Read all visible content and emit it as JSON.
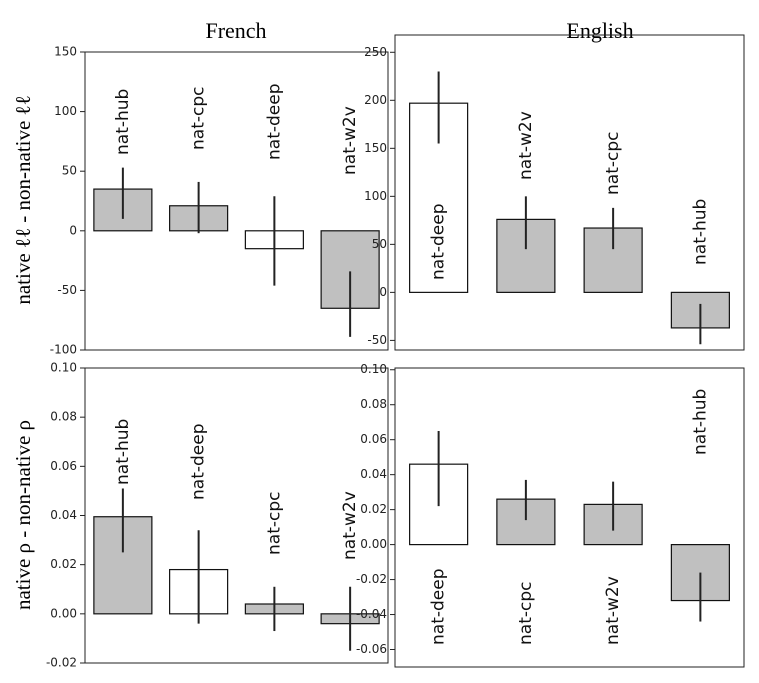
{
  "chart_data": [
    {
      "type": "bar",
      "title": "French",
      "ylabel": "native ℓℓ - non-native ℓℓ",
      "categories": [
        "nat-hub",
        "nat-cpc",
        "nat-deep",
        "nat-w2v"
      ],
      "values": [
        35,
        21,
        -15,
        -65
      ],
      "error_low": [
        10,
        -2,
        -46,
        -89
      ],
      "error_high": [
        53,
        41,
        29,
        -34
      ],
      "colors": [
        "#c0c0c0",
        "#c0c0c0",
        "#ffffff",
        "#c0c0c0"
      ],
      "ylim": [
        -100,
        150
      ],
      "yticks": [
        -100,
        -50,
        0,
        50,
        100,
        150
      ]
    },
    {
      "type": "bar",
      "title": "English",
      "categories": [
        "nat-deep",
        "nat-w2v",
        "nat-cpc",
        "nat-hub"
      ],
      "values": [
        197,
        76,
        67,
        -37
      ],
      "error_low": [
        155,
        45,
        45,
        -54
      ],
      "error_high": [
        230,
        100,
        88,
        -12
      ],
      "colors": [
        "#ffffff",
        "#c0c0c0",
        "#c0c0c0",
        "#c0c0c0"
      ],
      "ylim": [
        -60,
        268
      ],
      "yticks": [
        -50,
        0,
        50,
        100,
        150,
        200,
        250
      ]
    },
    {
      "type": "bar",
      "ylabel": "native ρ - non-native ρ",
      "categories": [
        "nat-hub",
        "nat-deep",
        "nat-cpc",
        "nat-w2v"
      ],
      "values": [
        0.0395,
        0.018,
        0.004,
        -0.004
      ],
      "error_low": [
        0.025,
        -0.004,
        -0.007,
        -0.015
      ],
      "error_high": [
        0.051,
        0.034,
        0.011,
        0.011
      ],
      "colors": [
        "#c0c0c0",
        "#ffffff",
        "#c0c0c0",
        "#c0c0c0"
      ],
      "ylim": [
        -0.02,
        0.1
      ],
      "yticks": [
        {
          "value": -0.02,
          "label": "-0.02"
        },
        {
          "value": 0,
          "label": "0.00"
        },
        {
          "value": 0.02,
          "label": "0.02"
        },
        {
          "value": 0.04,
          "label": "0.04"
        },
        {
          "value": 0.06,
          "label": "0.06"
        },
        {
          "value": 0.08,
          "label": "0.08"
        },
        {
          "value": 0.1,
          "label": "0.10"
        }
      ]
    },
    {
      "type": "bar",
      "categories": [
        "nat-deep",
        "nat-cpc",
        "nat-w2v",
        "nat-hub"
      ],
      "values": [
        0.046,
        0.026,
        0.023,
        -0.032
      ],
      "error_low": [
        0.022,
        0.014,
        0.008,
        -0.044
      ],
      "error_high": [
        0.065,
        0.037,
        0.036,
        -0.016
      ],
      "colors": [
        "#ffffff",
        "#c0c0c0",
        "#c0c0c0",
        "#c0c0c0"
      ],
      "ylim": [
        -0.07,
        0.101
      ],
      "yticks": [
        {
          "value": -0.06,
          "label": "-0.06"
        },
        {
          "value": -0.04,
          "label": "-0.04"
        },
        {
          "value": -0.02,
          "label": "-0.02"
        },
        {
          "value": 0,
          "label": "0.00"
        },
        {
          "value": 0.02,
          "label": "0.02"
        },
        {
          "value": 0.04,
          "label": "0.04"
        },
        {
          "value": 0.06,
          "label": "0.06"
        },
        {
          "value": 0.08,
          "label": "0.08"
        },
        {
          "value": 0.1,
          "label": "0.10"
        }
      ]
    }
  ]
}
